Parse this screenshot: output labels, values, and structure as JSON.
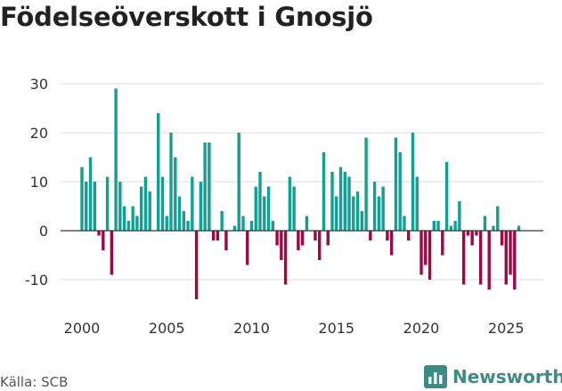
{
  "title": "Födelseöverskott i Gnosjö",
  "source": "Källa: SCB",
  "brand": {
    "name": "Newsworthy",
    "icon": "bar-chart-logo-icon"
  },
  "colors": {
    "positive": "#12a095",
    "negative": "#9b0a46",
    "grid": "#dddddd",
    "zero": "#333333"
  },
  "chart_data": {
    "type": "bar",
    "title": "Födelseöverskott i Gnosjö",
    "xlabel": "",
    "ylabel": "",
    "ylim": [
      -16,
      33
    ],
    "yticks": [
      -10,
      0,
      10,
      20,
      30
    ],
    "xticks": [
      2000,
      2005,
      2010,
      2015,
      2020,
      2025
    ],
    "grid": true,
    "x": [
      2000.0,
      2000.25,
      2000.5,
      2000.75,
      2001.0,
      2001.25,
      2001.5,
      2001.75,
      2002.0,
      2002.25,
      2002.5,
      2002.75,
      2003.0,
      2003.25,
      2003.5,
      2003.75,
      2004.0,
      2004.25,
      2004.5,
      2004.75,
      2005.0,
      2005.25,
      2005.5,
      2005.75,
      2006.0,
      2006.25,
      2006.5,
      2006.75,
      2007.0,
      2007.25,
      2007.5,
      2007.75,
      2008.0,
      2008.25,
      2008.5,
      2008.75,
      2009.0,
      2009.25,
      2009.5,
      2009.75,
      2010.0,
      2010.25,
      2010.5,
      2010.75,
      2011.0,
      2011.25,
      2011.5,
      2011.75,
      2012.0,
      2012.25,
      2012.5,
      2012.75,
      2013.0,
      2013.25,
      2013.5,
      2013.75,
      2014.0,
      2014.25,
      2014.5,
      2014.75,
      2015.0,
      2015.25,
      2015.5,
      2015.75,
      2016.0,
      2016.25,
      2016.5,
      2016.75,
      2017.0,
      2017.25,
      2017.5,
      2017.75,
      2018.0,
      2018.25,
      2018.5,
      2018.75,
      2019.0,
      2019.25,
      2019.5,
      2019.75,
      2020.0,
      2020.25,
      2020.5,
      2020.75,
      2021.0,
      2021.25,
      2021.5,
      2021.75,
      2022.0,
      2022.25,
      2022.5,
      2022.75,
      2023.0,
      2023.25,
      2023.5,
      2023.75,
      2024.0,
      2024.25,
      2024.5,
      2024.75,
      2025.0,
      2025.25,
      2025.5,
      2025.75
    ],
    "values": [
      13,
      10,
      15,
      10,
      -1,
      -4,
      11,
      -9,
      29,
      10,
      5,
      2,
      5,
      3,
      9,
      11,
      8,
      0,
      24,
      11,
      3,
      20,
      15,
      7,
      4,
      2,
      11,
      -14,
      10,
      18,
      18,
      -2,
      -2,
      4,
      -4,
      0,
      1,
      20,
      3,
      -7,
      2,
      9,
      12,
      7,
      9,
      2,
      -3,
      -6,
      -11,
      11,
      9,
      -4,
      -3,
      3,
      0,
      -2,
      -6,
      16,
      -3,
      12,
      7,
      13,
      12,
      11,
      7,
      8,
      4,
      19,
      -2,
      10,
      7,
      9,
      -2,
      -5,
      19,
      16,
      3,
      -2,
      20,
      11,
      -9,
      -7,
      -10,
      2,
      2,
      -5,
      14,
      1,
      2,
      6,
      -11,
      -1,
      -3,
      -1,
      -11,
      3,
      -12,
      1,
      5,
      -3,
      -11,
      -9,
      -12,
      1
    ]
  }
}
